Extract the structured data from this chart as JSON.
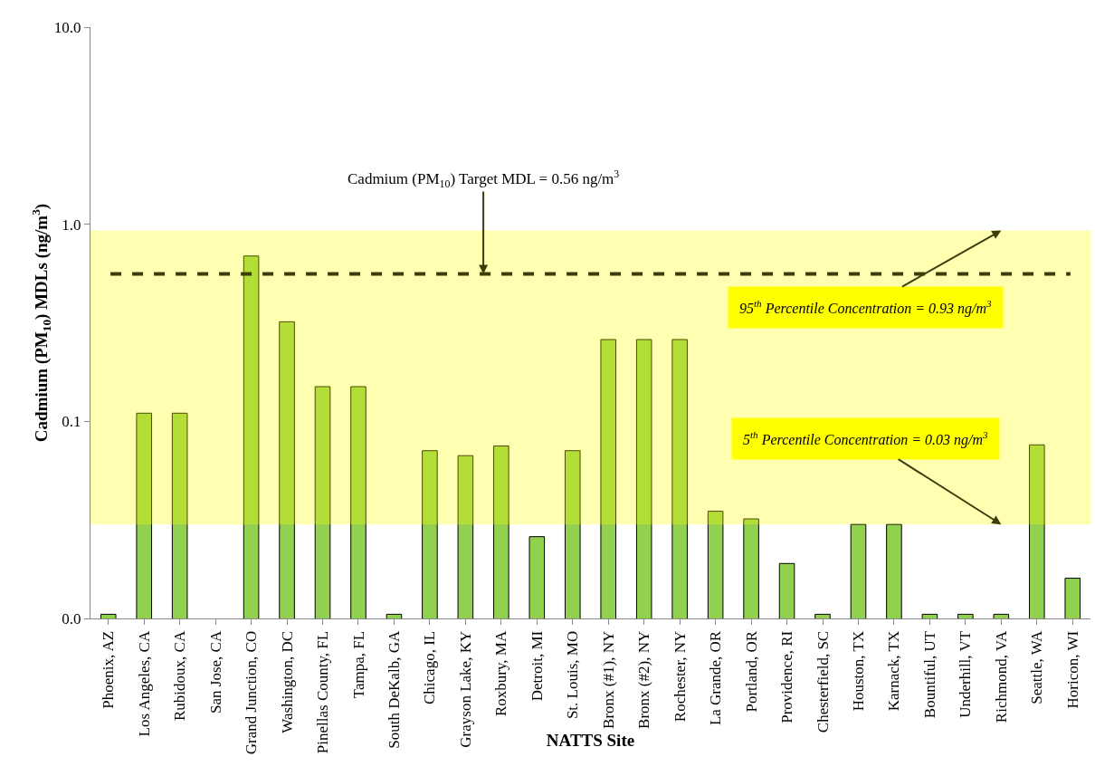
{
  "chart_data": {
    "type": "bar",
    "xlabel": "NATTS Site",
    "ylabel": "Cadmium (PM$_{10}$) MDLs (ng/m$^{3}$)",
    "categories": [
      "Phoenix, AZ",
      "Los Angeles, CA",
      "Rubidoux, CA",
      "San Jose, CA",
      "Grand Junction, CO",
      "Washington, DC",
      "Pinellas County, FL",
      "Tampa, FL",
      "South DeKalb, GA",
      "Chicago, IL",
      "Grayson Lake, KY",
      "Roxbury, MA",
      "Detroit, MI",
      "St. Louis, MO",
      "Bronx (#1), NY",
      "Bronx (#2), NY",
      "Rochester, NY",
      "La Grande, OR",
      "Portland, OR",
      "Providence, RI",
      "Chesterfield, SC",
      "Houston, TX",
      "Karnack, TX",
      "Bountiful, UT",
      "Underhill, VT",
      "Richmond, VA",
      "Seattle, WA",
      "Horicon, WI"
    ],
    "values": [
      0.0105,
      0.11,
      0.11,
      null,
      0.69,
      0.32,
      0.15,
      0.15,
      0.0105,
      0.071,
      0.067,
      0.075,
      0.026,
      0.071,
      0.26,
      0.26,
      0.26,
      0.035,
      0.032,
      0.019,
      0.0105,
      0.03,
      0.03,
      0.0105,
      0.0105,
      0.0105,
      0.076,
      0.016
    ],
    "color": "#92d050",
    "log": true,
    "ylim": [
      0.01,
      10
    ],
    "yticks": [
      {
        "value": 0.01,
        "label": "0.0"
      },
      {
        "value": 0.1,
        "label": "0.1"
      },
      {
        "value": 1,
        "label": "1.0"
      },
      {
        "value": 10,
        "label": "10.0"
      }
    ],
    "grid": false,
    "ref_lines": [
      {
        "axis": "y",
        "value": 0.56,
        "label": "Cadmium (PM$_{10}$) Target MDL = 0.56 ng/m$^{3}$",
        "color": "#3d3d0a",
        "line_style": "dashed"
      }
    ],
    "bands": [
      {
        "axis": "y",
        "from": 0.03,
        "to": 0.93,
        "color": "#ffff00"
      }
    ],
    "annotations": [
      {
        "text": "95$^{th}$ Percentile Concentration = 0.93 ng/m$^{3}$",
        "x": "Richmond, VA",
        "y": 0.93
      },
      {
        "text": "5$^{th}$ Percentile Concentration = 0.03 ng/m$^{3}$",
        "x": "Richmond, VA",
        "y": 0.03
      }
    ]
  }
}
